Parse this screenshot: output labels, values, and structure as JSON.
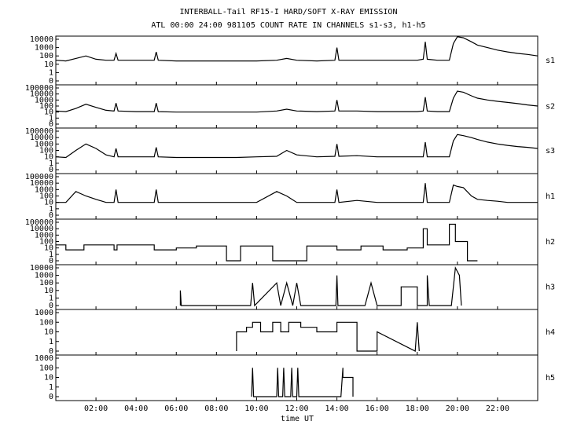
{
  "chart_data": [
    {
      "type": "line",
      "title": "INTERBALL-Tail RF15-I HARD/SOFT X-RAY EMISSION",
      "subtitle": "ATL 00:00 24:00 981105  COUNT RATE IN CHANNELS s1-s3, h1-h5",
      "name": "s1",
      "color": "#000000",
      "yscale": "log",
      "xlim": [
        0,
        24
      ],
      "ylim": [
        0,
        10000
      ],
      "yticks": [
        0,
        1,
        10,
        100,
        1000,
        10000
      ],
      "x": [
        0,
        0.5,
        1,
        1.5,
        2,
        2.5,
        2.9,
        3.0,
        3.1,
        4,
        4.9,
        5.0,
        5.1,
        6,
        7,
        8,
        9,
        10,
        11,
        11.5,
        12,
        13,
        13.9,
        14.0,
        14.1,
        15,
        16,
        17,
        18,
        18.3,
        18.4,
        18.5,
        19,
        19.6,
        19.8,
        20.0,
        20.3,
        20.7,
        21,
        21.5,
        22,
        22.5,
        23,
        23.5,
        24
      ],
      "values": [
        30,
        25,
        50,
        100,
        40,
        30,
        30,
        200,
        30,
        30,
        30,
        300,
        30,
        25,
        25,
        25,
        25,
        25,
        30,
        50,
        30,
        25,
        30,
        1000,
        30,
        30,
        30,
        30,
        30,
        40,
        5000,
        40,
        30,
        30,
        3000,
        20000,
        15000,
        5000,
        2000,
        1000,
        500,
        300,
        200,
        150,
        100
      ]
    },
    {
      "type": "line",
      "name": "s2",
      "color": "#000000",
      "yscale": "log",
      "xlim": [
        0,
        24
      ],
      "ylim": [
        0,
        100000
      ],
      "yticks": [
        0,
        1,
        10,
        100,
        1000,
        10000,
        100000
      ],
      "x": [
        0,
        0.5,
        1,
        1.5,
        2,
        2.5,
        2.9,
        3.0,
        3.1,
        4,
        4.9,
        5.0,
        5.1,
        6,
        7,
        8,
        9,
        10,
        11,
        11.5,
        12,
        13,
        13.9,
        14.0,
        14.1,
        15,
        16,
        17,
        18,
        18.3,
        18.4,
        18.5,
        19,
        19.6,
        19.8,
        20.0,
        20.3,
        20.7,
        21,
        21.5,
        22,
        22.5,
        23,
        23.5,
        24
      ],
      "values": [
        15,
        12,
        40,
        200,
        60,
        20,
        15,
        300,
        15,
        12,
        12,
        300,
        12,
        10,
        10,
        10,
        10,
        10,
        15,
        30,
        15,
        12,
        15,
        1000,
        15,
        15,
        12,
        12,
        12,
        15,
        3000,
        15,
        12,
        12,
        2000,
        30000,
        20000,
        5000,
        2000,
        1000,
        600,
        400,
        250,
        150,
        100
      ]
    },
    {
      "type": "line",
      "name": "s3",
      "color": "#000000",
      "yscale": "log",
      "xlim": [
        0,
        24
      ],
      "ylim": [
        0,
        100000
      ],
      "yticks": [
        0,
        1,
        10,
        100,
        1000,
        10000,
        100000
      ],
      "x": [
        0,
        0.5,
        1,
        1.5,
        2,
        2.5,
        2.9,
        3.0,
        3.1,
        4,
        4.9,
        5.0,
        5.1,
        6,
        7,
        8,
        9,
        10,
        11,
        11.5,
        12,
        13,
        13.9,
        14.0,
        14.1,
        15,
        16,
        17,
        18,
        18.3,
        18.4,
        18.5,
        19,
        19.6,
        19.8,
        20.0,
        20.3,
        20.7,
        21,
        21.5,
        22,
        22.5,
        23,
        23.5,
        24
      ],
      "values": [
        10,
        8,
        100,
        1000,
        200,
        20,
        10,
        200,
        10,
        10,
        10,
        300,
        10,
        8,
        8,
        8,
        8,
        10,
        12,
        100,
        20,
        10,
        12,
        1000,
        12,
        15,
        10,
        10,
        10,
        10,
        2000,
        10,
        10,
        10,
        3000,
        30000,
        20000,
        10000,
        5000,
        2000,
        1000,
        600,
        400,
        300,
        200
      ]
    },
    {
      "type": "line",
      "name": "h1",
      "color": "#000000",
      "yscale": "log",
      "xlim": [
        0,
        24
      ],
      "ylim": [
        0,
        100000
      ],
      "yticks": [
        0,
        1,
        10,
        100,
        1000,
        10000,
        100000
      ],
      "x": [
        0,
        0.5,
        1,
        1.5,
        2,
        2.5,
        2.9,
        3.0,
        3.1,
        4,
        4.9,
        5.0,
        5.1,
        6,
        7,
        8,
        9,
        10,
        11,
        11.5,
        12,
        13,
        13.9,
        14.0,
        14.1,
        15,
        16,
        17,
        18,
        18.3,
        18.4,
        18.5,
        19,
        19.6,
        19.8,
        20.0,
        20.3,
        20.7,
        21,
        21.5,
        22,
        22.5,
        23,
        23.5,
        24
      ],
      "values": [
        10,
        10,
        500,
        100,
        30,
        10,
        10,
        1000,
        10,
        10,
        10,
        1000,
        10,
        10,
        10,
        10,
        10,
        10,
        500,
        100,
        10,
        10,
        10,
        1000,
        10,
        20,
        10,
        10,
        10,
        10,
        10000,
        10,
        10,
        10,
        5000,
        3000,
        2000,
        100,
        30,
        20,
        15,
        10,
        10,
        10,
        10
      ]
    },
    {
      "type": "line",
      "name": "h2",
      "color": "#000000",
      "yscale": "log",
      "xlim": [
        0,
        24
      ],
      "ylim": [
        0,
        100000
      ],
      "yticks": [
        0,
        1,
        10,
        100,
        1000,
        10000,
        100000
      ],
      "x": [
        0,
        0.5,
        0.5,
        1.4,
        1.4,
        2.9,
        2.9,
        3.05,
        3.05,
        4.9,
        4.9,
        6.0,
        6.0,
        7.0,
        7.0,
        8.5,
        8.5,
        9.2,
        9.2,
        10.8,
        10.8,
        12.5,
        12.5,
        14.0,
        14.0,
        15.2,
        15.2,
        16.3,
        16.3,
        17.5,
        17.5,
        18.3,
        18.3,
        18.5,
        18.5,
        19.6,
        19.6,
        19.9,
        19.9,
        20.5,
        20.5,
        21.0
      ],
      "values": [
        30,
        30,
        5,
        5,
        30,
        30,
        5,
        5,
        30,
        30,
        5,
        5,
        10,
        10,
        20,
        20,
        0,
        0,
        20,
        20,
        0,
        0,
        20,
        20,
        5,
        5,
        20,
        20,
        5,
        5,
        10,
        10,
        10000,
        10000,
        30,
        30,
        50000,
        50000,
        100,
        100,
        0,
        0
      ]
    },
    {
      "type": "line",
      "name": "h3",
      "color": "#000000",
      "yscale": "log",
      "xlim": [
        0,
        24
      ],
      "ylim": [
        0,
        10000
      ],
      "yticks": [
        0,
        1,
        10,
        100,
        1000,
        10000
      ],
      "x": [
        6.2,
        6.2,
        6.25,
        9.7,
        9.8,
        9.9,
        11.0,
        11.2,
        11.5,
        11.8,
        12.0,
        12.2,
        13.95,
        14.0,
        14.05,
        15.4,
        15.7,
        16.0,
        17.2,
        17.2,
        18.0,
        18.0,
        18.5,
        18.5,
        18.6,
        19.7,
        19.9,
        20.1,
        20.2
      ],
      "values": [
        0,
        10,
        0,
        0,
        100,
        0,
        100,
        0,
        100,
        0,
        100,
        0,
        0,
        1000,
        0,
        0,
        100,
        0,
        0,
        30,
        30,
        0,
        0,
        1000,
        0,
        0,
        10000,
        1000,
        0
      ]
    },
    {
      "type": "line",
      "name": "h4",
      "color": "#000000",
      "yscale": "log",
      "xlim": [
        0,
        24
      ],
      "ylim": [
        0,
        1000
      ],
      "yticks": [
        0,
        1,
        10,
        100,
        1000
      ],
      "x": [
        9.0,
        9.0,
        9.5,
        9.5,
        9.8,
        9.8,
        10.2,
        10.2,
        10.8,
        10.8,
        11.2,
        11.2,
        11.6,
        11.6,
        12.2,
        12.2,
        13.0,
        13.0,
        14.0,
        14.0,
        15.0,
        15.0,
        16.0,
        16.0,
        17.9,
        18.0,
        18.1
      ],
      "values": [
        0,
        10,
        10,
        30,
        30,
        100,
        100,
        10,
        10,
        100,
        100,
        10,
        10,
        100,
        100,
        30,
        30,
        10,
        10,
        100,
        100,
        0,
        0,
        10,
        0,
        100,
        0
      ]
    },
    {
      "type": "line",
      "name": "h5",
      "color": "#000000",
      "yscale": "log",
      "xlim": [
        0,
        24
      ],
      "ylim": [
        0,
        1000
      ],
      "yticks": [
        0,
        1,
        10,
        100,
        1000
      ],
      "xlabel": "time UT",
      "xticks": [
        {
          "value": 2,
          "label": "02:00"
        },
        {
          "value": 4,
          "label": "04:00"
        },
        {
          "value": 6,
          "label": "06:00"
        },
        {
          "value": 8,
          "label": "08:00"
        },
        {
          "value": 10,
          "label": "10:00"
        },
        {
          "value": 12,
          "label": "12:00"
        },
        {
          "value": 14,
          "label": "14:00"
        },
        {
          "value": 16,
          "label": "16:00"
        },
        {
          "value": 18,
          "label": "18:00"
        },
        {
          "value": 20,
          "label": "20:00"
        },
        {
          "value": 22,
          "label": "22:00"
        }
      ],
      "x": [
        9.75,
        9.8,
        9.85,
        11.0,
        11.05,
        11.1,
        11.3,
        11.35,
        11.4,
        11.7,
        11.75,
        11.8,
        12.0,
        12.05,
        12.1,
        14.2,
        14.3,
        14.3,
        14.8,
        14.8
      ],
      "values": [
        0,
        100,
        0,
        0,
        100,
        0,
        0,
        100,
        0,
        0,
        100,
        0,
        0,
        100,
        0,
        0,
        100,
        10,
        10,
        0
      ]
    }
  ]
}
